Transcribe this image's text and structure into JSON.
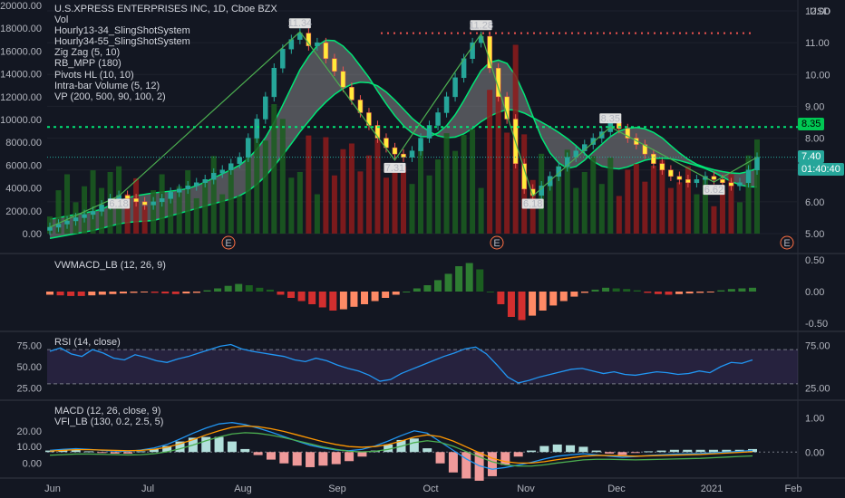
{
  "header": {
    "symbol_line": "U.S.XPRESS ENTERPRISES INC, 1D, Cboe BZX",
    "currency": "USD"
  },
  "legend": [
    "Vol",
    "Hourly13-34_SlingShotSystem",
    "Hourly34-55_SlingShotSystem",
    "Zig Zag (5, 10)",
    "RB_MPP (180)",
    "Pivots HL (10, 10)",
    "Intra-bar Volume (5, 12)",
    "VP (200, 500, 90, 100, 2)"
  ],
  "panes": {
    "vwmacd_title": "VWMACD_LB (12, 26, 9)",
    "rsi_title": "RSI (14, close)",
    "macd_title": "MACD (12, 26, close, 9)",
    "vfi_title": "VFI_LB (130, 0.2, 2.5, 5)"
  },
  "badges": {
    "level_line": "8.35",
    "last_price": "7.40",
    "countdown": "01:40:40"
  },
  "earnings_marker": "E",
  "colors": {
    "background": "#131722",
    "up": "#26a69a",
    "down": "#ef5350",
    "green_line": "#00e676",
    "cloud": "#9e9e9e",
    "rsi_line": "#2196f3",
    "rsi_band": "#7e57c2"
  },
  "chart_data": [
    {
      "type": "candlestick",
      "title": "U.S.XPRESS ENTERPRISES INC, 1D, Cboe BZX",
      "x_ticks": [
        "Jun",
        "Jul",
        "Aug",
        "Sep",
        "Oct",
        "Nov",
        "Dec",
        "2021",
        "Feb"
      ],
      "price_axis_ticks": [
        "12.00",
        "11.00",
        "10.00",
        "9.00",
        "8.00",
        "7.00",
        "6.00",
        "5.00"
      ],
      "price_ylim": [
        5.0,
        12.0
      ],
      "volume_axis_ticks": [
        "20000.00",
        "18000.00",
        "16000.00",
        "14000.00",
        "12000.00",
        "10000.00",
        "8000.00",
        "6000.00",
        "4000.00",
        "2000.00",
        "0.00"
      ],
      "volume_ylim": [
        0,
        20000
      ],
      "close": [
        5.2,
        5.3,
        5.4,
        5.5,
        5.6,
        5.7,
        5.9,
        6.1,
        6.2,
        6.1,
        6.0,
        5.9,
        6.0,
        6.1,
        6.3,
        6.4,
        6.5,
        6.6,
        6.7,
        6.9,
        7.0,
        7.2,
        7.4,
        8.0,
        8.6,
        9.3,
        10.2,
        10.8,
        11.1,
        11.3,
        10.9,
        11.0,
        10.5,
        10.1,
        9.6,
        9.2,
        8.8,
        8.4,
        8.0,
        7.7,
        7.5,
        7.4,
        7.6,
        8.0,
        8.4,
        8.8,
        9.3,
        9.9,
        10.5,
        11.0,
        11.2,
        10.2,
        9.3,
        8.6,
        7.2,
        6.4,
        6.2,
        6.5,
        6.8,
        7.1,
        7.4,
        7.6,
        7.8,
        8.0,
        8.2,
        8.5,
        8.3,
        8.0,
        7.8,
        7.5,
        7.2,
        7.0,
        6.8,
        6.7,
        6.6,
        6.7,
        6.8,
        6.7,
        6.6,
        6.5,
        6.6,
        7.0,
        7.4
      ],
      "pivot_labels": [
        {
          "text": "6.18",
          "value": 6.18
        },
        {
          "text": "11.34",
          "value": 11.34
        },
        {
          "text": "7.31",
          "value": 7.31
        },
        {
          "text": "11.28",
          "value": 11.28
        },
        {
          "text": "6.18",
          "value": 6.18
        },
        {
          "text": "8.35",
          "value": 8.35
        },
        {
          "text": "6.62",
          "value": 6.62
        }
      ]
    },
    {
      "type": "bar",
      "title": "VWMACD_LB (12, 26, 9)",
      "axis_ticks": [
        "0.50",
        "0.00",
        "-0.50"
      ],
      "ylim": [
        -0.5,
        0.5
      ],
      "values": [
        -0.05,
        -0.06,
        -0.07,
        -0.07,
        -0.06,
        -0.05,
        -0.04,
        -0.03,
        -0.02,
        -0.01,
        -0.02,
        -0.03,
        -0.04,
        -0.03,
        -0.02,
        0.02,
        0.05,
        0.09,
        0.12,
        0.1,
        0.06,
        0.03,
        -0.05,
        -0.1,
        -0.15,
        -0.2,
        -0.25,
        -0.3,
        -0.28,
        -0.24,
        -0.2,
        -0.15,
        -0.1,
        -0.05,
        0.0,
        0.05,
        0.1,
        0.18,
        0.28,
        0.4,
        0.45,
        0.35,
        0.0,
        -0.2,
        -0.4,
        -0.45,
        -0.38,
        -0.3,
        -0.22,
        -0.15,
        -0.08,
        -0.02,
        0.03,
        0.06,
        0.05,
        0.04,
        0.02,
        -0.02,
        -0.04,
        -0.05,
        -0.04,
        -0.03,
        -0.02,
        -0.01,
        0.02,
        0.04,
        0.05,
        0.06
      ]
    },
    {
      "type": "line",
      "title": "RSI (14, close)",
      "axis_ticks": [
        "75.00",
        "25.00"
      ],
      "left_ticks": [
        "75.00",
        "50.00",
        "25.00"
      ],
      "ylim": [
        15,
        85
      ],
      "band": [
        30,
        70
      ],
      "values": [
        68,
        72,
        65,
        62,
        70,
        66,
        60,
        58,
        64,
        61,
        57,
        55,
        59,
        62,
        66,
        70,
        74,
        76,
        71,
        68,
        66,
        64,
        62,
        58,
        56,
        60,
        57,
        52,
        48,
        45,
        40,
        33,
        35,
        42,
        47,
        52,
        57,
        62,
        66,
        71,
        73,
        65,
        52,
        38,
        31,
        34,
        38,
        41,
        44,
        47,
        48,
        45,
        42,
        44,
        41,
        40,
        42,
        44,
        43,
        41,
        42,
        45,
        43,
        50,
        55,
        54,
        58
      ]
    },
    {
      "type": "line",
      "title": "MACD (12, 26, close, 9)",
      "axis_ticks": [
        "1.00",
        "0.00"
      ],
      "left_ticks": [
        "20.00",
        "10.00",
        "0.00"
      ],
      "ylim": [
        -0.6,
        1.3
      ],
      "series": [
        {
          "name": "",
          "values": [
            0.05,
            0.08,
            0.1,
            0.08,
            0.05,
            0.03,
            0.02,
            0.06,
            0.12,
            0.22,
            0.38,
            0.55,
            0.7,
            0.82,
            0.86,
            0.8,
            0.7,
            0.58,
            0.45,
            0.32,
            0.2,
            0.12,
            0.06,
            0.04,
            0.08,
            0.18,
            0.32,
            0.48,
            0.62,
            0.55,
            0.3,
            0.05,
            -0.2,
            -0.4,
            -0.5,
            -0.45,
            -0.38,
            -0.3,
            -0.2,
            -0.12,
            -0.08,
            -0.05,
            -0.08,
            -0.12,
            -0.15,
            -0.13,
            -0.1,
            -0.08,
            -0.06,
            -0.05,
            -0.04,
            -0.02,
            0.0,
            0.02,
            0.05
          ]
        },
        {
          "name": "",
          "values": [
            0.03,
            0.05,
            0.07,
            0.07,
            0.06,
            0.05,
            0.04,
            0.05,
            0.08,
            0.14,
            0.24,
            0.36,
            0.5,
            0.62,
            0.72,
            0.76,
            0.74,
            0.68,
            0.6,
            0.5,
            0.4,
            0.3,
            0.22,
            0.16,
            0.14,
            0.16,
            0.22,
            0.32,
            0.44,
            0.5,
            0.45,
            0.32,
            0.15,
            -0.02,
            -0.18,
            -0.28,
            -0.32,
            -0.32,
            -0.28,
            -0.22,
            -0.17,
            -0.12,
            -0.1,
            -0.1,
            -0.11,
            -0.12,
            -0.11,
            -0.1,
            -0.09,
            -0.08,
            -0.07,
            -0.05,
            -0.03,
            -0.01,
            0.01
          ]
        }
      ]
    }
  ]
}
